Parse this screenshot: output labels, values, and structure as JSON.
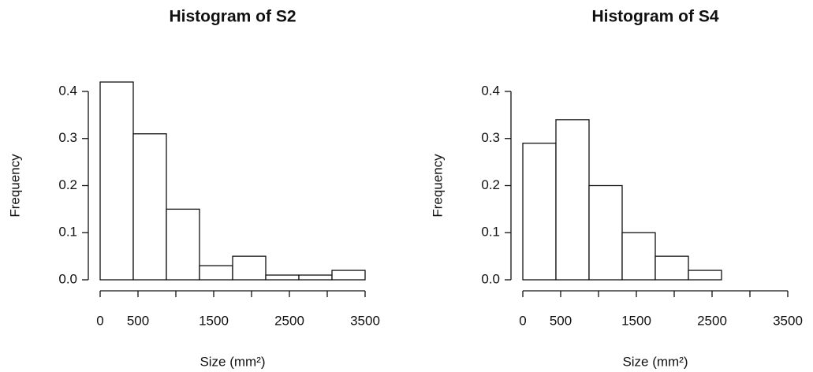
{
  "chart_data": [
    {
      "type": "histogram",
      "title": "Histogram of S2",
      "xlabel": "Size (mm²)",
      "ylabel": "Frequency",
      "bins": [
        0,
        437.5,
        875,
        1312.5,
        1750,
        2187.5,
        2625,
        3062.5,
        3500
      ],
      "values": [
        0.42,
        0.31,
        0.15,
        0.03,
        0.05,
        0.01,
        0.01,
        0.02
      ],
      "color": "#ffffff",
      "xlim": [
        0,
        3500
      ],
      "ylim": [
        0,
        0.4
      ],
      "xticks": [
        0,
        500,
        {
          "value": 1000,
          "label": null
        },
        1500,
        {
          "value": 2000,
          "label": null
        },
        2500,
        {
          "value": 3000,
          "label": null
        },
        3500
      ],
      "yticks": [
        {
          "value": 0,
          "label": "0.0"
        },
        0.1,
        0.2,
        0.3,
        0.4
      ]
    },
    {
      "type": "histogram",
      "title": "Histogram of S4",
      "xlabel": "Size (mm²)",
      "ylabel": "Frequency",
      "bins": [
        0,
        437.5,
        875,
        1312.5,
        1750,
        2187.5,
        2625,
        3062.5,
        3500
      ],
      "values": [
        0.29,
        0.34,
        0.2,
        0.1,
        0.05,
        0.02,
        0,
        0
      ],
      "color": "#ffffff",
      "xlim": [
        0,
        3500
      ],
      "ylim": [
        0,
        0.4
      ],
      "xticks": [
        0,
        500,
        {
          "value": 1000,
          "label": null
        },
        1500,
        {
          "value": 2000,
          "label": null
        },
        2500,
        {
          "value": 3000,
          "label": null
        },
        3500
      ],
      "yticks": [
        {
          "value": 0,
          "label": "0.0"
        },
        0.1,
        0.2,
        0.3,
        0.4
      ]
    }
  ]
}
